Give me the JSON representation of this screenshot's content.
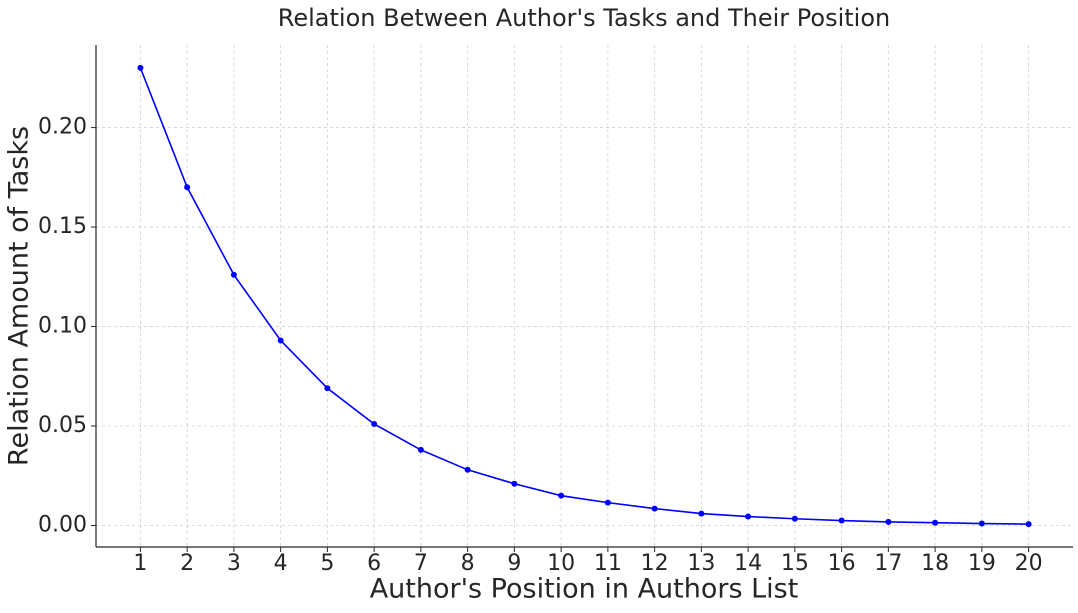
{
  "chart_data": {
    "type": "line",
    "title": "Relation Between Author's Tasks and Their Position",
    "x_label": "Author's Position in Authors List",
    "y_label": "Relation Amount of Tasks",
    "x": [
      1,
      2,
      3,
      4,
      5,
      6,
      7,
      8,
      9,
      10,
      11,
      12,
      13,
      14,
      15,
      16,
      17,
      18,
      19,
      20
    ],
    "values": [
      0.23,
      0.17,
      0.126,
      0.093,
      0.069,
      0.051,
      0.038,
      0.028,
      0.021,
      0.015,
      0.0115,
      0.0085,
      0.006,
      0.0045,
      0.0034,
      0.0025,
      0.0018,
      0.0014,
      0.001,
      0.0007
    ],
    "color": "#0000ff",
    "xlim": [
      0.05,
      20.95
    ],
    "xticks": [
      1,
      2,
      3,
      4,
      5,
      6,
      7,
      8,
      9,
      10,
      11,
      12,
      13,
      14,
      15,
      16,
      17,
      18,
      19,
      20
    ],
    "ylim": [
      -0.0108,
      0.2415
    ],
    "yticks": [
      {
        "value": 0,
        "label": "0.00"
      },
      {
        "value": 0.05,
        "label": "0.05"
      },
      {
        "value": 0.1,
        "label": "0.10"
      },
      {
        "value": 0.15,
        "label": "0.15"
      },
      {
        "value": 0.2,
        "label": "0.20"
      }
    ],
    "grid": true
  }
}
